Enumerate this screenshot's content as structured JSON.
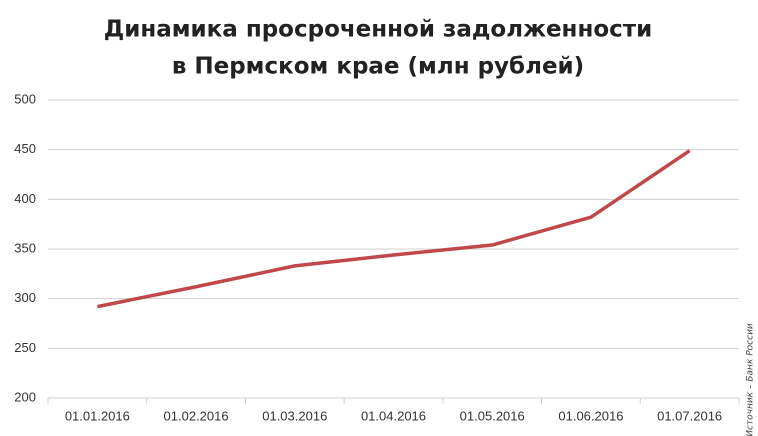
{
  "chart_data": {
    "type": "line",
    "title": [
      "Динамика просроченной задолженности",
      "в Пермском крае (млн рублей)"
    ],
    "source": "Источник – Банк России",
    "categories": [
      "01.01.2016",
      "01.02.2016",
      "01.03.2016",
      "01.04.2016",
      "01.05.2016",
      "01.06.2016",
      "01.07.2016"
    ],
    "values": [
      292,
      312,
      333,
      344,
      354,
      382,
      449
    ],
    "color": "#c0474a",
    "ylim": [
      200,
      500
    ],
    "yticks": [
      200,
      250,
      300,
      350,
      400,
      450,
      500
    ],
    "grid": true
  }
}
